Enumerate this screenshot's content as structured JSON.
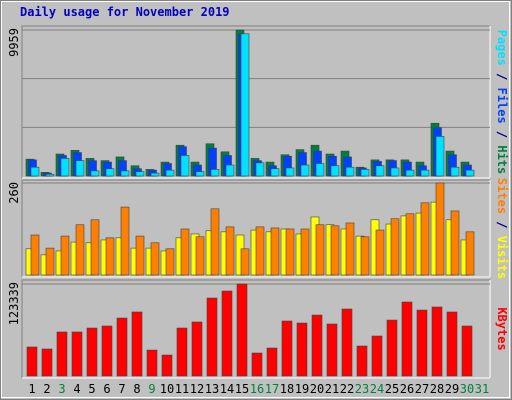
{
  "title": "Daily usage for November 2019",
  "legend_separator": " / ",
  "chart_data": [
    {
      "type": "bar",
      "ylim": [
        0,
        9959
      ],
      "yticks": [
        9959
      ],
      "series": [
        {
          "name": "Hits",
          "color": "#008040",
          "values": [
            1150,
            250,
            1500,
            1750,
            1200,
            1050,
            1300,
            700,
            450,
            950,
            2100,
            950,
            2200,
            1650,
            9959,
            1200,
            950,
            1450,
            1800,
            2100,
            1500,
            1700,
            600,
            1100,
            1100,
            1100,
            950,
            3600,
            1700,
            950,
            null
          ]
        },
        {
          "name": "Files",
          "color": "#0040ff",
          "values": [
            1100,
            200,
            1400,
            1600,
            1050,
            950,
            1050,
            500,
            400,
            850,
            2000,
            750,
            1900,
            1400,
            9700,
            1050,
            700,
            1350,
            1600,
            1700,
            1350,
            1300,
            550,
            1000,
            1050,
            950,
            700,
            3300,
            1450,
            750,
            null
          ]
        },
        {
          "name": "Pages",
          "color": "#00e0ff",
          "values": [
            600,
            120,
            1200,
            1050,
            350,
            500,
            350,
            300,
            200,
            400,
            1400,
            300,
            450,
            750,
            9700,
            900,
            500,
            550,
            750,
            850,
            700,
            600,
            450,
            700,
            550,
            400,
            400,
            2700,
            600,
            400,
            null
          ]
        }
      ]
    },
    {
      "type": "bar",
      "ylim": [
        0,
        260
      ],
      "yticks": [
        260
      ],
      "series": [
        {
          "name": "Visits",
          "color": "#ffff00",
          "values": [
            74,
            57,
            68,
            93,
            91,
            99,
            105,
            76,
            76,
            68,
            105,
            116,
            125,
            122,
            113,
            127,
            122,
            130,
            116,
            164,
            142,
            130,
            110,
            156,
            144,
            167,
            175,
            206,
            156,
            99,
            null
          ]
        },
        {
          "name": "Sites",
          "color": "#ff8000",
          "values": [
            113,
            76,
            110,
            142,
            156,
            105,
            192,
            110,
            91,
            74,
            130,
            108,
            187,
            136,
            74,
            136,
            133,
            130,
            130,
            142,
            139,
            147,
            108,
            127,
            159,
            173,
            204,
            260,
            181,
            122,
            null
          ]
        }
      ]
    },
    {
      "type": "bar",
      "ylim": [
        0,
        123339
      ],
      "yticks": [
        123339
      ],
      "categories": [
        "1",
        "2",
        "3",
        "4",
        "5",
        "6",
        "7",
        "8",
        "9",
        "10",
        "11",
        "12",
        "13",
        "14",
        "15",
        "16",
        "17",
        "18",
        "19",
        "20",
        "21",
        "22",
        "23",
        "24",
        "25",
        "26",
        "27",
        "28",
        "29",
        "30",
        "31"
      ],
      "category_colors": [
        "#000000",
        "#000000",
        "#008040",
        "#000000",
        "#000000",
        "#000000",
        "#000000",
        "#000000",
        "#008040",
        "#000000",
        "#000000",
        "#000000",
        "#000000",
        "#000000",
        "#000000",
        "#008040",
        "#008040",
        "#000000",
        "#000000",
        "#000000",
        "#000000",
        "#000000",
        "#008040",
        "#008040",
        "#000000",
        "#000000",
        "#000000",
        "#000000",
        "#000000",
        "#008040",
        "#008040"
      ],
      "series": [
        {
          "name": "KBytes",
          "color": "#ff0000",
          "values": [
            38900,
            36200,
            59000,
            59000,
            64300,
            67000,
            77700,
            85800,
            34800,
            28100,
            64300,
            72400,
            104500,
            113900,
            123339,
            30800,
            37500,
            73700,
            71000,
            81700,
            69700,
            89800,
            40200,
            53600,
            75000,
            99200,
            88400,
            92500,
            85800,
            67000,
            null
          ]
        }
      ]
    }
  ]
}
